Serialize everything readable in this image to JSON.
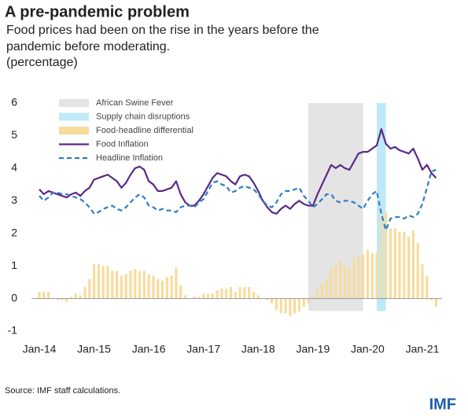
{
  "chart_data": {
    "type": "line",
    "title": "A pre-pandemic problem",
    "subtitle": [
      "Food prices had been on the rise in the years before the",
      "pandemic before moderating.",
      "(percentage)"
    ],
    "source": "Source: IMF staff calculations.",
    "logo": "IMF",
    "categories": [
      "Jan-14",
      null,
      null,
      null,
      null,
      null,
      null,
      null,
      null,
      null,
      null,
      null,
      "Jan-15",
      null,
      null,
      null,
      null,
      null,
      null,
      null,
      null,
      null,
      null,
      null,
      "Jan-16",
      null,
      null,
      null,
      null,
      null,
      null,
      null,
      null,
      null,
      null,
      null,
      "Jan-17",
      null,
      null,
      null,
      null,
      null,
      null,
      null,
      null,
      null,
      null,
      null,
      "Jan-18",
      null,
      null,
      null,
      null,
      null,
      null,
      null,
      null,
      null,
      null,
      null,
      "Jan-19",
      null,
      null,
      null,
      null,
      null,
      null,
      null,
      null,
      null,
      null,
      null,
      "Jan-20",
      null,
      null,
      null,
      null,
      null,
      null,
      null,
      null,
      null,
      null,
      null,
      "Jan-21",
      null,
      null,
      null
    ],
    "ylim": [
      -1,
      6
    ],
    "yticks": [
      -1,
      0,
      1,
      2,
      3,
      4,
      5,
      6
    ],
    "spans": [
      {
        "name": "African Swine Fever",
        "color": "#e4e4e4",
        "start": 59,
        "end": 71
      },
      {
        "name": "Supply chain disruptions",
        "color": "#bfe9f8",
        "start": 74,
        "end": 76
      }
    ],
    "series": [
      {
        "name": "Food-headline differential",
        "type": "bar",
        "color": "#f8dc9e",
        "values": [
          0.2,
          0.2,
          0.2,
          0,
          -0.05,
          -0.05,
          -0.1,
          0.05,
          0.15,
          0.1,
          0.35,
          0.6,
          1.05,
          1.05,
          1.0,
          1.0,
          0.85,
          0.85,
          0.7,
          0.75,
          0.85,
          0.9,
          0.85,
          0.85,
          0.75,
          0.7,
          0.6,
          0.55,
          0.65,
          0.7,
          0.95,
          0.4,
          0.1,
          0,
          0.05,
          0.05,
          0.15,
          0.15,
          0.15,
          0.25,
          0.3,
          0.3,
          0.35,
          0.2,
          0.35,
          0.35,
          0.35,
          0.2,
          0.1,
          0,
          -0.05,
          -0.15,
          -0.35,
          -0.45,
          -0.45,
          -0.55,
          -0.45,
          -0.4,
          -0.25,
          -0.15,
          0.05,
          0.3,
          0.45,
          0.6,
          0.9,
          1.0,
          1.15,
          1.0,
          0.95,
          1.25,
          1.3,
          1.35,
          1.5,
          1.4,
          1.4,
          2.6,
          2.65,
          2.15,
          2.15,
          2.05,
          2.05,
          1.9,
          2.1,
          1.7,
          1.05,
          0.7,
          -0.05,
          -0.25
        ]
      },
      {
        "name": "Food Inflation",
        "type": "line",
        "color": "#5a2a86",
        "values": [
          3.35,
          3.2,
          3.3,
          3.25,
          3.2,
          3.15,
          3.1,
          3.2,
          3.25,
          3.15,
          3.3,
          3.4,
          3.65,
          3.7,
          3.75,
          3.8,
          3.7,
          3.6,
          3.4,
          3.55,
          3.8,
          4.0,
          4.05,
          3.95,
          3.6,
          3.5,
          3.3,
          3.3,
          3.35,
          3.4,
          3.6,
          3.2,
          2.95,
          2.85,
          2.85,
          3.0,
          3.2,
          3.45,
          3.7,
          3.85,
          3.8,
          3.75,
          3.6,
          3.5,
          3.75,
          3.8,
          3.75,
          3.55,
          3.3,
          3.0,
          2.8,
          2.65,
          2.6,
          2.75,
          2.85,
          2.75,
          2.9,
          3.0,
          2.9,
          2.85,
          2.85,
          3.2,
          3.5,
          3.8,
          4.1,
          4.0,
          4.1,
          4.0,
          3.95,
          4.2,
          4.45,
          4.5,
          4.5,
          4.6,
          4.7,
          5.2,
          4.75,
          4.6,
          4.65,
          4.55,
          4.5,
          4.45,
          4.6,
          4.3,
          3.95,
          4.1,
          3.85,
          3.7
        ]
      },
      {
        "name": "Headline Inflation",
        "type": "line",
        "dashed": true,
        "color": "#2f7ec1",
        "values": [
          3.15,
          3.0,
          3.1,
          3.25,
          3.25,
          3.2,
          3.2,
          3.15,
          3.1,
          3.05,
          2.95,
          2.8,
          2.6,
          2.65,
          2.75,
          2.8,
          2.85,
          2.75,
          2.7,
          2.8,
          2.95,
          3.1,
          3.2,
          3.1,
          2.85,
          2.8,
          2.7,
          2.75,
          2.7,
          2.7,
          2.65,
          2.8,
          2.85,
          2.85,
          2.8,
          2.95,
          3.05,
          3.3,
          3.55,
          3.6,
          3.5,
          3.45,
          3.25,
          3.3,
          3.4,
          3.45,
          3.4,
          3.35,
          3.2,
          3.0,
          2.85,
          2.8,
          2.95,
          3.2,
          3.3,
          3.3,
          3.35,
          3.4,
          3.15,
          3.0,
          2.8,
          2.9,
          3.05,
          3.2,
          3.2,
          3.0,
          2.95,
          3.0,
          3.0,
          2.95,
          2.85,
          2.75,
          3.0,
          3.2,
          3.3,
          2.6,
          2.1,
          2.45,
          2.5,
          2.5,
          2.45,
          2.55,
          2.5,
          2.6,
          2.9,
          3.4,
          3.9,
          3.95
        ]
      }
    ]
  }
}
